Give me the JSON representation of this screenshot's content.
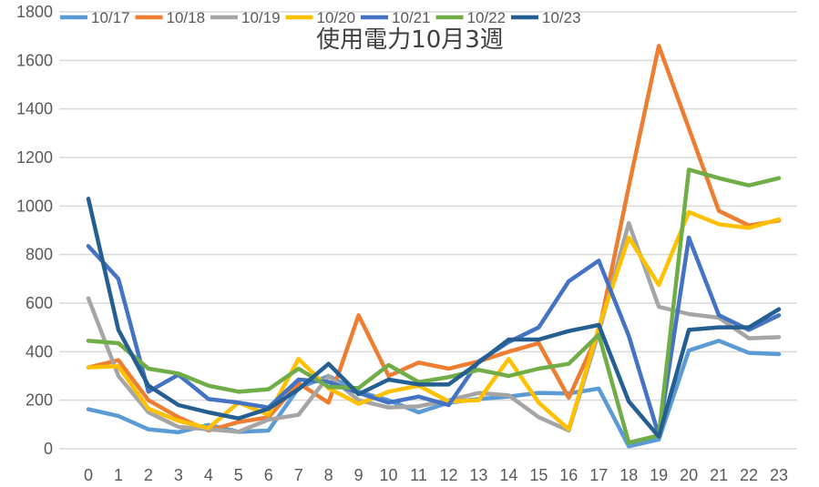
{
  "chart_data": {
    "type": "line",
    "title": "使用電力10月3週",
    "xlabel": "",
    "ylabel": "",
    "x": [
      0,
      1,
      2,
      3,
      4,
      5,
      6,
      7,
      8,
      9,
      10,
      11,
      12,
      13,
      14,
      15,
      16,
      17,
      18,
      19,
      20,
      21,
      22,
      23
    ],
    "ylim": [
      0,
      1800
    ],
    "yticks": [
      0,
      200,
      400,
      600,
      800,
      1000,
      1200,
      1400,
      1600,
      1800
    ],
    "grid": true,
    "legend_position": "top",
    "series": [
      {
        "name": "10/17",
        "color": "#5B9BD5",
        "values": [
          163,
          135,
          80,
          68,
          98,
          70,
          75,
          250,
          300,
          235,
          200,
          150,
          190,
          205,
          215,
          230,
          228,
          248,
          10,
          38,
          405,
          445,
          395,
          390
        ]
      },
      {
        "name": "10/18",
        "color": "#ED7D31",
        "values": [
          335,
          365,
          200,
          130,
          75,
          110,
          130,
          270,
          190,
          550,
          300,
          355,
          330,
          360,
          400,
          435,
          210,
          480,
          1080,
          1660,
          1320,
          980,
          920,
          940
        ]
      },
      {
        "name": "10/19",
        "color": "#A5A5A5",
        "values": [
          620,
          300,
          150,
          90,
          80,
          70,
          120,
          140,
          300,
          200,
          170,
          175,
          200,
          230,
          220,
          130,
          75,
          480,
          930,
          585,
          555,
          540,
          455,
          460
        ]
      },
      {
        "name": "10/20",
        "color": "#FFC000",
        "values": [
          335,
          340,
          165,
          115,
          85,
          190,
          140,
          370,
          250,
          185,
          235,
          260,
          195,
          200,
          370,
          190,
          80,
          500,
          870,
          675,
          975,
          925,
          910,
          945
        ]
      },
      {
        "name": "10/21",
        "color": "#4472C4",
        "values": [
          835,
          700,
          235,
          305,
          205,
          190,
          170,
          285,
          275,
          230,
          190,
          215,
          180,
          360,
          440,
          500,
          690,
          775,
          465,
          55,
          870,
          550,
          490,
          550
        ]
      },
      {
        "name": "10/22",
        "color": "#70AD47",
        "values": [
          445,
          435,
          330,
          310,
          260,
          235,
          245,
          330,
          255,
          250,
          345,
          275,
          295,
          325,
          300,
          330,
          350,
          470,
          25,
          55,
          1150,
          1115,
          1085,
          1115
        ]
      },
      {
        "name": "10/23",
        "color": "#255E91",
        "values": [
          1030,
          490,
          260,
          180,
          150,
          125,
          165,
          245,
          350,
          225,
          285,
          265,
          265,
          355,
          450,
          450,
          485,
          510,
          195,
          50,
          490,
          500,
          500,
          575
        ]
      }
    ]
  }
}
